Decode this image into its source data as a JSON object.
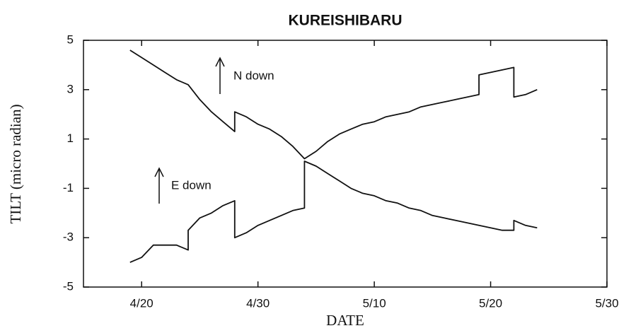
{
  "chart_data": {
    "type": "line",
    "title": "KUREISHIBARU",
    "xlabel": "DATE",
    "ylabel": "TILT (micro radian)",
    "annotations": [
      "N down",
      "E down"
    ],
    "xlim": [
      "4/15",
      "5/30"
    ],
    "xticks": [
      "4/20",
      "4/30",
      "5/10",
      "5/20",
      "5/30"
    ],
    "ylim": [
      -5,
      5
    ],
    "yticks": [
      5,
      3,
      1,
      -1,
      -3,
      -5
    ],
    "series": [
      {
        "color": "#111111",
        "x": [
          "4/19",
          "4/20",
          "4/21",
          "4/22",
          "4/23",
          "4/24",
          "4/25",
          "4/26",
          "4/27",
          "4/28",
          "4/28",
          "4/29",
          "4/30",
          "5/1",
          "5/2",
          "5/3",
          "5/4",
          "5/5",
          "5/6",
          "5/7",
          "5/8",
          "5/9",
          "5/10",
          "5/11",
          "5/12",
          "5/13",
          "5/14",
          "5/15",
          "5/16",
          "5/17",
          "5/18",
          "5/19",
          "5/19",
          "5/20",
          "5/21",
          "5/22",
          "5/22",
          "5/23",
          "5/24"
        ],
        "values": [
          4.6,
          4.3,
          4.0,
          3.7,
          3.4,
          3.2,
          2.6,
          2.1,
          1.7,
          1.3,
          2.1,
          1.9,
          1.6,
          1.4,
          1.1,
          0.7,
          0.2,
          0.5,
          0.9,
          1.2,
          1.4,
          1.6,
          1.7,
          1.9,
          2.0,
          2.1,
          2.3,
          2.4,
          2.5,
          2.6,
          2.7,
          2.8,
          3.6,
          3.7,
          3.8,
          3.9,
          2.7,
          2.8,
          3.0
        ]
      },
      {
        "color": "#111111",
        "x": [
          "4/19",
          "4/20",
          "4/21",
          "4/22",
          "4/23",
          "4/24",
          "4/24",
          "4/25",
          "4/26",
          "4/27",
          "4/28",
          "4/28",
          "4/29",
          "4/30",
          "5/1",
          "5/2",
          "5/3",
          "5/4",
          "5/4",
          "5/5",
          "5/6",
          "5/7",
          "5/8",
          "5/9",
          "5/10",
          "5/11",
          "5/12",
          "5/13",
          "5/14",
          "5/15",
          "5/16",
          "5/17",
          "5/18",
          "5/19",
          "5/20",
          "5/21",
          "5/22",
          "5/22",
          "5/23",
          "5/24"
        ],
        "values": [
          -4.0,
          -3.8,
          -3.3,
          -3.3,
          -3.3,
          -3.5,
          -2.7,
          -2.2,
          -2.0,
          -1.7,
          -1.5,
          -3.0,
          -2.8,
          -2.5,
          -2.3,
          -2.1,
          -1.9,
          -1.8,
          0.1,
          -0.1,
          -0.4,
          -0.7,
          -1.0,
          -1.2,
          -1.3,
          -1.5,
          -1.6,
          -1.8,
          -1.9,
          -2.1,
          -2.2,
          -2.3,
          -2.4,
          -2.5,
          -2.6,
          -2.7,
          -2.7,
          -2.3,
          -2.5,
          -2.6
        ]
      }
    ]
  }
}
